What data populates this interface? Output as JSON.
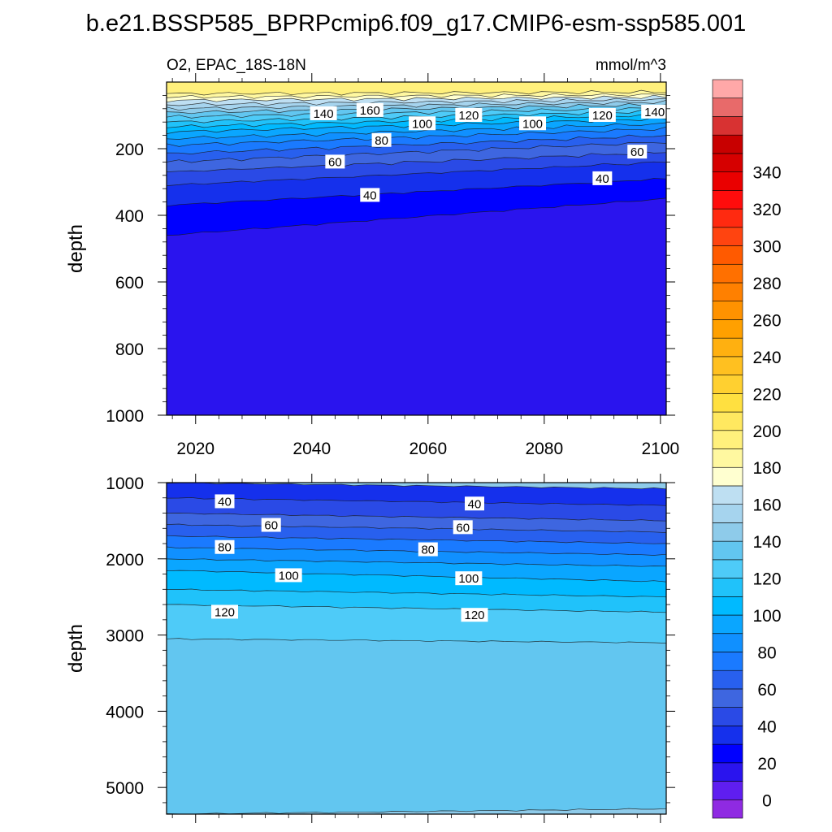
{
  "title": "b.e21.BSSP585_BPRPcmip6.f09_g17.CMIP6-esm-ssp585.001",
  "chart_data": [
    {
      "type": "heatmap",
      "subtitle_left": "O2, EPAC_18S-18N",
      "subtitle_right": "mmol/m^3",
      "ylabel": "depth",
      "xlabel": "",
      "xlim": [
        2015,
        2101
      ],
      "ylim": [
        0,
        1000
      ],
      "y_inverted": true,
      "x_ticks": [
        2020,
        2040,
        2060,
        2080,
        2100
      ],
      "x_tick_labels": [
        "2020",
        "2040",
        "2060",
        "2080",
        "2100"
      ],
      "y_ticks": [
        200,
        400,
        600,
        800,
        1000
      ],
      "y_tick_labels": [
        "200",
        "400",
        "600",
        "800",
        "1000"
      ],
      "contour_depths": {
        "years": [
          2015,
          2101
        ],
        "levels": [
          {
            "value": 20,
            "depth": [
              460,
              350
            ]
          },
          {
            "value": 30,
            "depth": [
              370,
              290
            ]
          },
          {
            "value": 40,
            "depth": [
              310,
              240
            ]
          },
          {
            "value": 50,
            "depth": [
              270,
              210
            ]
          },
          {
            "value": 60,
            "depth": [
              240,
              180
            ]
          },
          {
            "value": 70,
            "depth": [
              215,
              160
            ]
          },
          {
            "value": 80,
            "depth": [
              190,
              140
            ]
          },
          {
            "value": 90,
            "depth": [
              170,
              125
            ]
          },
          {
            "value": 100,
            "depth": [
              150,
              110
            ]
          },
          {
            "value": 110,
            "depth": [
              135,
              98
            ]
          },
          {
            "value": 120,
            "depth": [
              120,
              88
            ]
          },
          {
            "value": 130,
            "depth": [
              105,
              78
            ]
          },
          {
            "value": 140,
            "depth": [
              92,
              68
            ]
          },
          {
            "value": 150,
            "depth": [
              80,
              60
            ]
          },
          {
            "value": 160,
            "depth": [
              68,
              52
            ]
          },
          {
            "value": 170,
            "depth": [
              55,
              45
            ]
          },
          {
            "value": 180,
            "depth": [
              45,
              38
            ]
          },
          {
            "value": 190,
            "depth": [
              35,
              30
            ]
          }
        ],
        "surface_value": 200
      },
      "annotations": [
        {
          "text": "140",
          "x": 2042,
          "y": 95
        },
        {
          "text": "160",
          "x": 2050,
          "y": 85
        },
        {
          "text": "100",
          "x": 2059,
          "y": 125
        },
        {
          "text": "120",
          "x": 2067,
          "y": 100
        },
        {
          "text": "100",
          "x": 2078,
          "y": 125
        },
        {
          "text": "120",
          "x": 2090,
          "y": 100
        },
        {
          "text": "140",
          "x": 2099,
          "y": 90
        },
        {
          "text": "80",
          "x": 2052,
          "y": 175
        },
        {
          "text": "60",
          "x": 2044,
          "y": 240
        },
        {
          "text": "40",
          "x": 2050,
          "y": 340
        },
        {
          "text": "60",
          "x": 2096,
          "y": 210
        },
        {
          "text": "40",
          "x": 2090,
          "y": 290
        }
      ]
    },
    {
      "type": "heatmap",
      "ylabel": "depth",
      "xlabel": "",
      "xlim": [
        2015,
        2101
      ],
      "ylim": [
        1000,
        5350
      ],
      "y_inverted": true,
      "x_ticks": [
        2020,
        2040,
        2060,
        2080,
        2100
      ],
      "y_ticks": [
        1000,
        2000,
        3000,
        4000,
        5000
      ],
      "y_tick_labels": [
        "1000",
        "2000",
        "3000",
        "4000",
        "5000"
      ],
      "contour_depths": {
        "years": [
          2015,
          2101
        ],
        "levels": [
          {
            "value": 30,
            "depth": [
              1000,
              1080
            ]
          },
          {
            "value": 40,
            "depth": [
              1200,
              1300
            ]
          },
          {
            "value": 50,
            "depth": [
              1400,
              1500
            ]
          },
          {
            "value": 60,
            "depth": [
              1550,
              1650
            ]
          },
          {
            "value": 70,
            "depth": [
              1700,
              1800
            ]
          },
          {
            "value": 80,
            "depth": [
              1850,
              1950
            ]
          },
          {
            "value": 90,
            "depth": [
              2000,
              2100
            ]
          },
          {
            "value": 100,
            "depth": [
              2150,
              2300
            ]
          },
          {
            "value": 110,
            "depth": [
              2400,
              2500
            ]
          },
          {
            "value": 120,
            "depth": [
              2600,
              2700
            ]
          },
          {
            "value": 130,
            "depth": [
              3050,
              3100
            ]
          },
          {
            "value": 140,
            "depth": [
              5350,
              5280
            ]
          }
        ],
        "bottom_value": 145
      },
      "annotations": [
        {
          "text": "40",
          "x": 2025,
          "y": 1250
        },
        {
          "text": "60",
          "x": 2033,
          "y": 1560
        },
        {
          "text": "80",
          "x": 2025,
          "y": 1850
        },
        {
          "text": "100",
          "x": 2036,
          "y": 2220
        },
        {
          "text": "120",
          "x": 2025,
          "y": 2700
        },
        {
          "text": "40",
          "x": 2068,
          "y": 1280
        },
        {
          "text": "60",
          "x": 2066,
          "y": 1590
        },
        {
          "text": "80",
          "x": 2060,
          "y": 1880
        },
        {
          "text": "100",
          "x": 2067,
          "y": 2260
        },
        {
          "text": "120",
          "x": 2068,
          "y": 2740
        }
      ]
    }
  ],
  "colorbar": {
    "label_values": [
      "0",
      "20",
      "40",
      "60",
      "80",
      "100",
      "120",
      "140",
      "160",
      "180",
      "200",
      "220",
      "240",
      "260",
      "280",
      "300",
      "320",
      "340"
    ],
    "colors": [
      "#8f2ae2",
      "#5f1ef0",
      "#2a14ee",
      "#0000ff",
      "#1530ec",
      "#2a4ae6",
      "#3e66e0",
      "#2860ee",
      "#1a7aff",
      "#1090ff",
      "#0aa6ff",
      "#00baff",
      "#20c2fa",
      "#4ecbf8",
      "#62c6f0",
      "#8ecbea",
      "#a6d4ee",
      "#bedff2",
      "#ffffd0",
      "#fff8a0",
      "#fff07c",
      "#ffe860",
      "#ffe040",
      "#ffd030",
      "#ffc020",
      "#ffb010",
      "#ffa000",
      "#ff9200",
      "#ff8000",
      "#ff7000",
      "#ff5a00",
      "#ff4410",
      "#ff2a10",
      "#ff0c0c",
      "#ea0000",
      "#d60000",
      "#c80000",
      "#d83232",
      "#e86a6a",
      "#ffa8a8"
    ]
  }
}
